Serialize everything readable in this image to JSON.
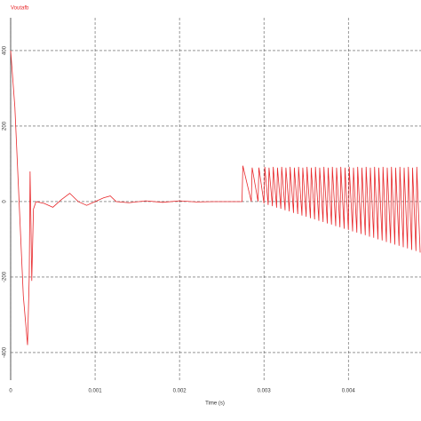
{
  "chart_data": {
    "type": "line",
    "x_label": "Time (s)",
    "xlim": [
      0,
      0.00486
    ],
    "ylim": [
      -473,
      487
    ],
    "xticks": [
      0,
      0.001,
      0.002,
      0.003,
      0.004
    ],
    "yticks": [
      -400,
      -200,
      0,
      200,
      400
    ],
    "grid": true,
    "x": [
      0,
      5e-05,
      0.0001,
      0.00015,
      0.0002,
      0.00022,
      0.00023,
      0.00024,
      0.00025,
      0.00027,
      0.0003,
      0.0004,
      0.0005,
      0.0006,
      0.0007,
      0.0008,
      0.0009,
      0.001,
      0.0011,
      0.00118,
      0.00125,
      0.0014,
      0.0016,
      0.0018,
      0.002,
      0.0022,
      0.0024,
      0.0027,
      0.00274,
      0.00275,
      0.00285,
      0.00286,
      0.00293,
      0.00294,
      0.003,
      0.00301,
      0.00305,
      0.00306,
      0.0031,
      0.00311,
      0.00315,
      0.00316,
      0.0032,
      0.00321,
      0.00325,
      0.00326,
      0.0033,
      0.00331,
      0.00335,
      0.00336,
      0.0034,
      0.00341,
      0.00345,
      0.00346,
      0.0035,
      0.00351,
      0.00355,
      0.00356,
      0.0036,
      0.00361,
      0.00365,
      0.00366,
      0.0037,
      0.00371,
      0.00375,
      0.00376,
      0.0038,
      0.00381,
      0.00385,
      0.00386,
      0.0039,
      0.00391,
      0.00395,
      0.00396,
      0.004,
      0.00401,
      0.00405,
      0.00406,
      0.0041,
      0.00411,
      0.00415,
      0.00416,
      0.0042,
      0.00421,
      0.00425,
      0.00426,
      0.0043,
      0.00431,
      0.00435,
      0.00436,
      0.0044,
      0.00441,
      0.00445,
      0.00446,
      0.0045,
      0.00451,
      0.00455,
      0.00456,
      0.0046,
      0.00461,
      0.00465,
      0.00466,
      0.0047,
      0.00471,
      0.00475,
      0.00476,
      0.0048,
      0.00481,
      0.00485
    ],
    "series": [
      {
        "name": "Voutafb",
        "color": "#e8292c",
        "values": [
          400,
          250,
          0,
          -250,
          -380,
          -200,
          80,
          -50,
          -210,
          -20,
          0,
          -5,
          -15,
          5,
          22,
          0,
          -10,
          0,
          10,
          15,
          0,
          -3,
          2,
          -2,
          2,
          -1,
          0,
          0,
          0,
          95,
          0,
          90,
          0,
          90,
          -5,
          92,
          -9,
          90,
          -12,
          92,
          -16,
          90,
          -19,
          92,
          -23,
          90,
          -26,
          92,
          -30,
          90,
          -33,
          92,
          -37,
          90,
          -40,
          92,
          -44,
          90,
          -47,
          92,
          -51,
          90,
          -54,
          92,
          -58,
          90,
          -61,
          92,
          -65,
          90,
          -68,
          92,
          -72,
          90,
          -75,
          92,
          -79,
          90,
          -82,
          92,
          -86,
          90,
          -89,
          92,
          -93,
          90,
          -96,
          92,
          -100,
          90,
          -103,
          92,
          -107,
          90,
          -110,
          92,
          -114,
          90,
          -117,
          92,
          -121,
          90,
          -124,
          92,
          -128,
          90,
          -131,
          92,
          -135
        ]
      }
    ]
  }
}
